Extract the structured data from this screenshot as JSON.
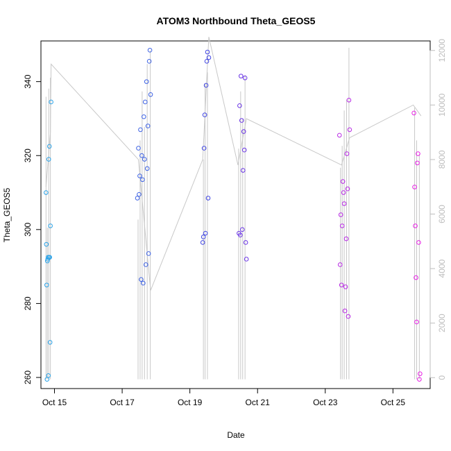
{
  "chart_data": {
    "type": "scatter",
    "title": "ATOM3 Northbound Theta_GEOS5",
    "xlabel": "Date",
    "ylabel": "Theta_GEOS5",
    "xlim": [
      14.6,
      26.1
    ],
    "ylim": [
      257,
      351
    ],
    "x_ticks": [
      {
        "value": 15,
        "label": "Oct 15"
      },
      {
        "value": 17,
        "label": "Oct 17"
      },
      {
        "value": 19,
        "label": "Oct 19"
      },
      {
        "value": 21,
        "label": "Oct 21"
      },
      {
        "value": 23,
        "label": "Oct 23"
      },
      {
        "value": 25,
        "label": "Oct 25"
      }
    ],
    "y_ticks": [
      260,
      280,
      300,
      320,
      340
    ],
    "y2_label": "",
    "y2lim": [
      -400,
      12350
    ],
    "y2_ticks": [
      0,
      2000,
      4000,
      6000,
      8000,
      10000,
      12000
    ],
    "grid": false,
    "legend": "none",
    "colors": {
      "axis": "#000000",
      "secondary": "#bdbdbd",
      "altitude_line": "#c8c8c8"
    },
    "series": [
      {
        "color": "#2ba3e8",
        "x": [
          14.75,
          14.76,
          14.77,
          14.78,
          14.79,
          14.8,
          14.81,
          14.82,
          14.83,
          14.84,
          14.85,
          14.86,
          14.87,
          14.88,
          14.9
        ],
        "y": [
          310,
          296,
          285,
          259.5,
          291.5,
          292,
          292.5,
          260.5,
          319,
          292.5,
          322.5,
          292.5,
          269.5,
          301,
          334.5
        ]
      },
      {
        "color": "#3d62e4",
        "x": [
          17.45,
          17.48,
          17.5,
          17.52,
          17.54,
          17.56,
          17.58,
          17.6,
          17.62,
          17.64,
          17.66,
          17.68,
          17.7,
          17.72,
          17.74,
          17.76,
          17.78,
          17.8,
          17.82,
          17.84
        ],
        "y": [
          308.5,
          322,
          309.5,
          314.5,
          327,
          286.5,
          320,
          313.5,
          285.5,
          330.5,
          319,
          334.5,
          290.5,
          340,
          316.5,
          328,
          293.5,
          345.5,
          348.5,
          336.5
        ]
      },
      {
        "color": "#3f44e3",
        "x": [
          19.38,
          19.4,
          19.42,
          19.44,
          19.46,
          19.48,
          19.5,
          19.52,
          19.54,
          19.56
        ],
        "y": [
          296.5,
          298,
          322,
          331,
          299,
          339,
          345.5,
          348,
          308.5,
          346.5
        ]
      },
      {
        "color": "#6a34e6",
        "x": [
          20.45,
          20.47,
          20.49,
          20.51,
          20.53,
          20.55,
          20.57,
          20.59,
          20.61,
          20.63,
          20.65,
          20.67
        ],
        "y": [
          299,
          333.5,
          298.5,
          341.5,
          329.5,
          300,
          316,
          326.5,
          321.5,
          341,
          296.5,
          292
        ]
      },
      {
        "color": "#b829e5",
        "x": [
          23.42,
          23.44,
          23.46,
          23.48,
          23.5,
          23.52,
          23.54,
          23.56,
          23.58,
          23.6,
          23.62,
          23.64,
          23.66,
          23.68,
          23.7,
          23.72
        ],
        "y": [
          325.5,
          290.5,
          304,
          285,
          301,
          313,
          310,
          307,
          278,
          284.5,
          297.5,
          320.5,
          311,
          276.5,
          335,
          327
        ]
      },
      {
        "color": "#e71fe4",
        "x": [
          25.62,
          25.64,
          25.66,
          25.68,
          25.7,
          25.72,
          25.74,
          25.76,
          25.78,
          25.8
        ],
        "y": [
          331.5,
          311.5,
          301,
          287,
          275,
          318,
          320.5,
          296.5,
          259.5,
          261
        ]
      }
    ],
    "altitude_path": {
      "x": [
        14.75,
        14.88,
        14.9,
        17.48,
        17.84,
        19.38,
        19.56,
        20.42,
        20.67,
        23.48,
        23.72,
        25.6,
        25.83
      ],
      "y": [
        7000,
        9000,
        11500,
        8000,
        3200,
        8000,
        12500,
        7800,
        9500,
        7800,
        8800,
        10000,
        9600
      ]
    },
    "altitude_spikes": [
      {
        "x": 14.75,
        "top": 10300
      },
      {
        "x": 14.79,
        "top": 5500
      },
      {
        "x": 14.83,
        "top": 10600
      },
      {
        "x": 14.88,
        "top": 11000
      },
      {
        "x": 17.47,
        "top": 5800
      },
      {
        "x": 17.53,
        "top": 8700
      },
      {
        "x": 17.59,
        "top": 10500
      },
      {
        "x": 17.66,
        "top": 9200
      },
      {
        "x": 17.74,
        "top": 11500
      },
      {
        "x": 17.83,
        "top": 12000
      },
      {
        "x": 19.4,
        "top": 8000
      },
      {
        "x": 19.45,
        "top": 10800
      },
      {
        "x": 19.52,
        "top": 11200
      },
      {
        "x": 20.44,
        "top": 8400
      },
      {
        "x": 20.5,
        "top": 10500
      },
      {
        "x": 20.56,
        "top": 9500
      },
      {
        "x": 20.63,
        "top": 11100
      },
      {
        "x": 23.45,
        "top": 7700
      },
      {
        "x": 23.5,
        "top": 8500
      },
      {
        "x": 23.56,
        "top": 9800
      },
      {
        "x": 23.63,
        "top": 10200
      },
      {
        "x": 23.7,
        "top": 12100
      },
      {
        "x": 25.64,
        "top": 9900
      },
      {
        "x": 25.7,
        "top": 8700
      },
      {
        "x": 25.78,
        "top": 8200
      }
    ]
  }
}
